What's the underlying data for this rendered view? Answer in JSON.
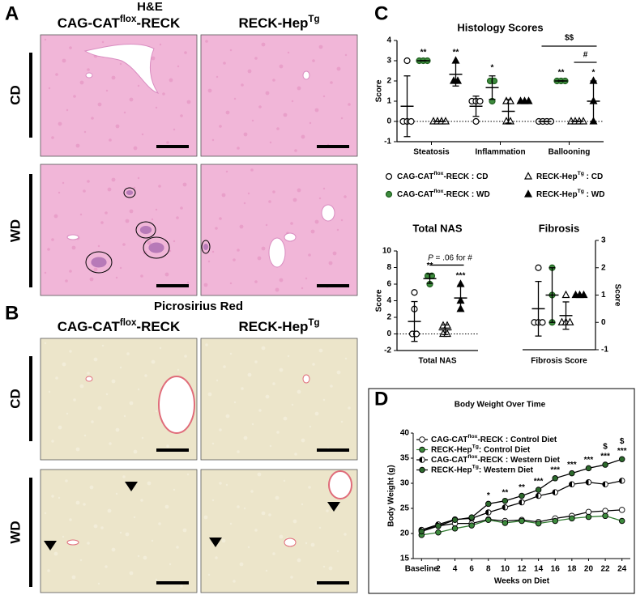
{
  "panel_a": {
    "label": "A",
    "title": "H&E",
    "columns": [
      {
        "base": "CAG-CAT",
        "sup": "flox",
        "rest": "-RECK"
      },
      {
        "base": "RECK-Hep",
        "sup": "Tg"
      }
    ],
    "rows": [
      "CD",
      "WD"
    ]
  },
  "panel_b": {
    "label": "B",
    "title": "Picrosirius Red",
    "columns": [
      {
        "base": "CAG-CAT",
        "sup": "flox",
        "rest": "-RECK"
      },
      {
        "base": "RECK-Hep",
        "sup": "Tg"
      }
    ],
    "rows": [
      "CD",
      "WD"
    ]
  },
  "panel_c": {
    "label": "C"
  },
  "panel_d": {
    "label": "D"
  },
  "chart_data": [
    {
      "type": "dot",
      "title": "Histology Scores",
      "y_label": "Score",
      "categories": [
        "Steatosis",
        "Inflammation",
        "Ballooning"
      ],
      "ylim": [
        -1,
        4
      ],
      "yticks": [
        -1,
        0,
        1,
        2,
        3,
        4
      ],
      "zero_line": true,
      "series": [
        {
          "name": {
            "base": "CAG-CAT",
            "sup": "flox",
            "rest": "-RECK : CD"
          },
          "marker": "circle",
          "color": "#ffffff",
          "values": [
            [
              3,
              0,
              0,
              0
            ],
            [
              1,
              1,
              1,
              0
            ],
            [
              0,
              0,
              0,
              0
            ]
          ],
          "mean": [
            0.75,
            0.75,
            0
          ],
          "sd": [
            1.5,
            0.5,
            0
          ],
          "significance": [
            null,
            null,
            null
          ]
        },
        {
          "name": {
            "base": "CAG-CAT",
            "sup": "flox",
            "rest": "-RECK : WD"
          },
          "marker": "circle",
          "color": "#3d8b3d",
          "values": [
            [
              3,
              3,
              3
            ],
            [
              2,
              2,
              1
            ],
            [
              2,
              2,
              2
            ]
          ],
          "mean": [
            3,
            1.67,
            2
          ],
          "sd": [
            0,
            0.58,
            0
          ],
          "significance": [
            "**",
            "*",
            "**"
          ]
        },
        {
          "name": {
            "base": "RECK-Hep",
            "sup": "Tg",
            "rest": " : CD"
          },
          "marker": "triangle",
          "color": "#ffffff",
          "values": [
            [
              0,
              0,
              0,
              0
            ],
            [
              1,
              1,
              0,
              0
            ],
            [
              0,
              0,
              0,
              0
            ]
          ],
          "mean": [
            0,
            0.5,
            0
          ],
          "sd": [
            0,
            0.58,
            0
          ],
          "significance": [
            null,
            null,
            null
          ]
        },
        {
          "name": {
            "base": "RECK-Hep",
            "sup": "Tg",
            "rest": " : WD"
          },
          "marker": "triangle",
          "color": "#000000",
          "values": [
            [
              3,
              2,
              2
            ],
            [
              1,
              1,
              1
            ],
            [
              2,
              1,
              0
            ]
          ],
          "mean": [
            2.33,
            1,
            1
          ],
          "sd": [
            0.58,
            0,
            1
          ],
          "significance": [
            "**",
            null,
            "*"
          ]
        }
      ],
      "brackets": [
        "$$",
        "#"
      ]
    },
    {
      "type": "dot",
      "title": "Total  NAS",
      "y_label": "Score",
      "categories": [
        "Total NAS"
      ],
      "ylim": [
        -2,
        10
      ],
      "yticks": [
        -2,
        0,
        2,
        4,
        6,
        8,
        10
      ],
      "zero_line": true,
      "series": [
        {
          "marker": "circle",
          "color": "#ffffff",
          "values": [
            [
              5,
              3,
              0,
              0
            ]
          ],
          "mean": [
            1.5
          ],
          "sd": [
            2.4
          ],
          "significance": [
            null
          ]
        },
        {
          "marker": "circle",
          "color": "#3d8b3d",
          "values": [
            [
              7,
              7,
              6
            ]
          ],
          "mean": [
            6.67
          ],
          "sd": [
            0.58
          ],
          "significance": [
            "**"
          ]
        },
        {
          "marker": "triangle",
          "color": "#ffffff",
          "values": [
            [
              1,
              1,
              0,
              0
            ]
          ],
          "mean": [
            0.5
          ],
          "sd": [
            0.58
          ],
          "significance": [
            null
          ]
        },
        {
          "marker": "triangle",
          "color": "#000000",
          "values": [
            [
              6,
              4,
              3
            ]
          ],
          "mean": [
            4.33
          ],
          "sd": [
            1.53
          ],
          "significance": [
            "***"
          ]
        }
      ],
      "brackets": [
        {
          "italic": "P",
          "rest": " = .06 for #"
        }
      ]
    },
    {
      "type": "dot",
      "title": "Fibrosis",
      "y_label": "Score",
      "y_axis_side": "right",
      "categories": [
        "Fibrosis Score"
      ],
      "ylim": [
        -1,
        3
      ],
      "yticks": [
        -1,
        0,
        1,
        2,
        3
      ],
      "zero_line": false,
      "series": [
        {
          "marker": "circle",
          "color": "#ffffff",
          "values": [
            [
              2,
              0,
              0,
              0
            ]
          ],
          "mean": [
            0.5
          ],
          "sd": [
            1
          ],
          "significance": [
            null
          ]
        },
        {
          "marker": "circle",
          "color": "#3d8b3d",
          "values": [
            [
              2,
              1,
              0
            ]
          ],
          "mean": [
            1
          ],
          "sd": [
            1
          ],
          "significance": [
            null
          ]
        },
        {
          "marker": "triangle",
          "color": "#ffffff",
          "values": [
            [
              1,
              0,
              0,
              0
            ]
          ],
          "mean": [
            0.25
          ],
          "sd": [
            0.5
          ],
          "significance": [
            null
          ]
        },
        {
          "marker": "triangle",
          "color": "#000000",
          "values": [
            [
              1,
              1,
              1
            ]
          ],
          "mean": [
            1
          ],
          "sd": [
            0
          ],
          "significance": [
            null
          ]
        }
      ]
    },
    {
      "type": "line",
      "title": "Body Weight Over Time",
      "x_label": "Weeks on Diet",
      "y_label": "Body Weight (g)",
      "categories": [
        "Baseline",
        "2",
        "4",
        "6",
        "8",
        "10",
        "12",
        "14",
        "16",
        "18",
        "20",
        "22",
        "24"
      ],
      "ylim": [
        15,
        40
      ],
      "yticks": [
        15,
        20,
        25,
        30,
        35,
        40
      ],
      "series": [
        {
          "name": {
            "base": "CAG-CAT",
            "sup": "flox",
            "rest": "-RECK : Control Diet"
          },
          "marker_fill": "white",
          "line_color": "#000000",
          "values": [
            20.7,
            21.5,
            22,
            22,
            22.8,
            22.5,
            22.7,
            22.3,
            23,
            23.5,
            24.3,
            24.5,
            24.7
          ]
        },
        {
          "name": {
            "base": "RECK-Hep",
            "sup": "Tg",
            "rest": ": Control Diet"
          },
          "marker_fill": "#3d8b3d",
          "line_color": "#2f7a2f",
          "values": [
            19.7,
            20.2,
            21,
            21.6,
            22.7,
            22.1,
            22.5,
            22,
            22.5,
            23,
            23.3,
            23.5,
            22.5
          ]
        },
        {
          "name": {
            "base": "CAG-CAT",
            "sup": "flox",
            "rest": "-RECK : Western Diet"
          },
          "marker_fill": "half",
          "line_color": "#000000",
          "values": [
            20.7,
            21.8,
            22.8,
            23,
            24.2,
            25.2,
            26.2,
            27.5,
            28.2,
            29.8,
            30.2,
            29.8,
            30.5
          ]
        },
        {
          "name": {
            "base": "RECK-Hep",
            "sup": "Tg",
            "rest": ": Western Diet"
          },
          "marker_fill": "#2d6a2d",
          "line_color": "#000000",
          "values": [
            20.4,
            21.5,
            22.7,
            23.2,
            25.9,
            26.5,
            27.5,
            28.7,
            31,
            32,
            33,
            33.7,
            34.8
          ]
        }
      ],
      "significance": [
        null,
        null,
        null,
        null,
        "*",
        "**",
        "**",
        "***",
        "***",
        "***",
        "***",
        "***",
        "***"
      ],
      "significance_2": [
        null,
        null,
        null,
        null,
        null,
        null,
        null,
        null,
        null,
        null,
        null,
        "$",
        "$"
      ]
    }
  ]
}
